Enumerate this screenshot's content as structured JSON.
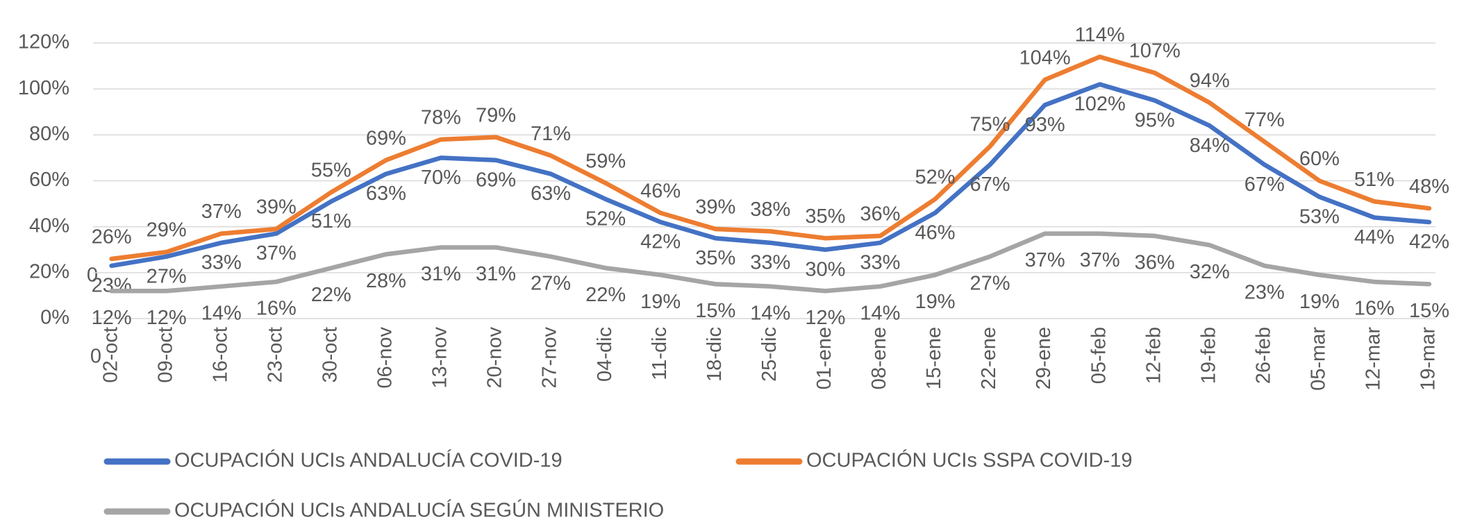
{
  "chart_data": {
    "type": "line",
    "categories": [
      "02-oct",
      "09-oct",
      "16-oct",
      "23-oct",
      "30-oct",
      "06-nov",
      "13-nov",
      "20-nov",
      "27-nov",
      "04-dic",
      "11-dic",
      "18-dic",
      "25-dic",
      "01-ene",
      "08-ene",
      "15-ene",
      "22-ene",
      "29-ene",
      "05-feb",
      "12-feb",
      "19-feb",
      "26-feb",
      "05-mar",
      "12-mar",
      "19-mar"
    ],
    "series": [
      {
        "name": "OCUPACIÓN UCIs ANDALUCÍA COVID-19",
        "color": "#4472c4",
        "values": [
          23,
          27,
          33,
          37,
          51,
          63,
          70,
          69,
          63,
          52,
          42,
          35,
          33,
          30,
          33,
          46,
          67,
          93,
          102,
          95,
          84,
          67,
          53,
          44,
          42
        ],
        "value_labels": [
          "23%",
          "27%",
          "33%",
          "37%",
          "51%",
          "63%",
          "70%",
          "69%",
          "63%",
          "52%",
          "42%",
          "35%",
          "33%",
          "30%",
          "33%",
          "46%",
          "67%",
          "93%",
          "102%",
          "95%",
          "84%",
          "67%",
          "53%",
          "44%",
          "42%"
        ]
      },
      {
        "name": "OCUPACIÓN UCIs SSPA COVID-19",
        "color": "#ed7d31",
        "values": [
          26,
          29,
          37,
          39,
          55,
          69,
          78,
          79,
          71,
          59,
          46,
          39,
          38,
          35,
          36,
          52,
          75,
          104,
          114,
          107,
          94,
          77,
          60,
          51,
          48
        ],
        "value_labels": [
          "26%",
          "29%",
          "37%",
          "39%",
          "55%",
          "69%",
          "78%",
          "79%",
          "71%",
          "59%",
          "46%",
          "39%",
          "38%",
          "35%",
          "36%",
          "52%",
          "75%",
          "104%",
          "114%",
          "107%",
          "94%",
          "77%",
          "60%",
          "51%",
          "48%"
        ]
      },
      {
        "name": "OCUPACIÓN UCIs ANDALUCÍA SEGÚN MINISTERIO",
        "color": "#a5a5a5",
        "values": [
          12,
          12,
          14,
          16,
          22,
          28,
          31,
          31,
          27,
          22,
          19,
          15,
          14,
          12,
          14,
          19,
          27,
          37,
          37,
          36,
          32,
          23,
          19,
          16,
          15
        ],
        "value_labels": [
          "12%",
          "12%",
          "14%",
          "16%",
          "22%",
          "28%",
          "31%",
          "31%",
          "27%",
          "22%",
          "19%",
          "15%",
          "14%",
          "12%",
          "14%",
          "19%",
          "27%",
          "37%",
          "37%",
          "36%",
          "32%",
          "23%",
          "19%",
          "16%",
          "15%"
        ]
      }
    ],
    "annotations": [
      "0",
      "0"
    ],
    "ylim": [
      0,
      120
    ],
    "yticks": [
      {
        "value": 0,
        "label": "0%"
      },
      {
        "value": 20,
        "label": "20%"
      },
      {
        "value": 40,
        "label": "40%"
      },
      {
        "value": 60,
        "label": "60%"
      },
      {
        "value": 80,
        "label": "80%"
      },
      {
        "value": 100,
        "label": "100%"
      },
      {
        "value": 120,
        "label": "120%"
      }
    ],
    "grid": true,
    "legend": "bottom"
  }
}
